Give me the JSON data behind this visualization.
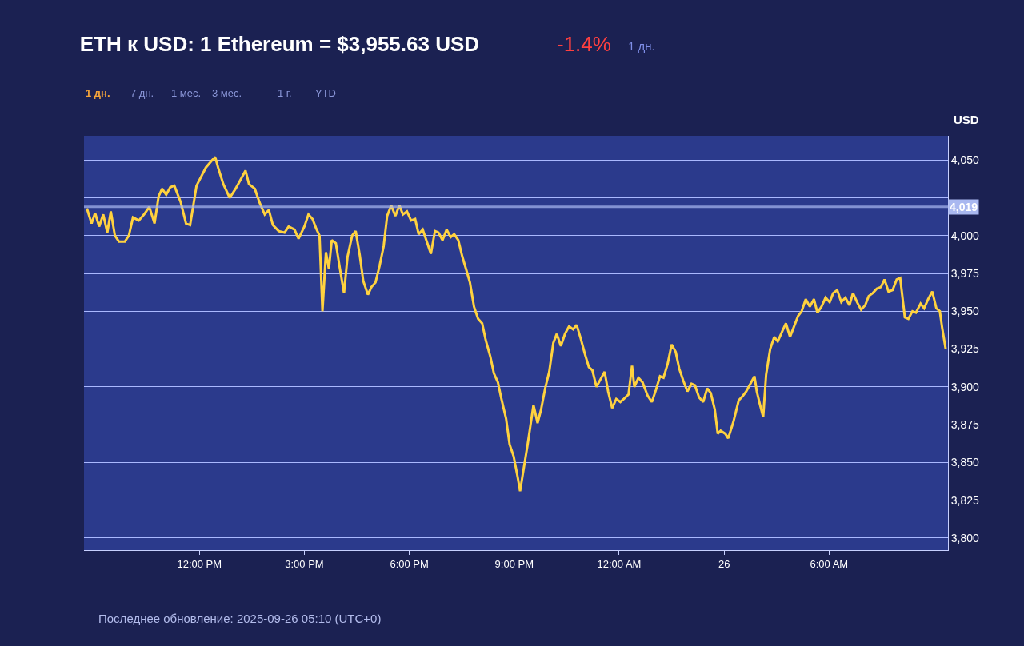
{
  "chart_data": {
    "type": "line",
    "title": "ETH к USD: 1 Ethereum = $3,955.63 USD",
    "ylabel": "USD",
    "annotations": [
      "-1.4%",
      "1 дн.",
      "1 дн.",
      "7 дн.",
      "1 мес.",
      "3 мес.",
      "1 г.",
      "YTD",
      "Последнее обновление: 2025-09-26 05:10 (UTC+0)"
    ],
    "series": [
      {
        "color": "#ffd23f",
        "x": [
          "2025-09-25T08:47",
          "2025-09-25T08:55",
          "2025-09-25T09:01",
          "2025-09-25T09:08",
          "2025-09-25T09:15",
          "2025-09-25T09:22",
          "2025-09-25T09:28",
          "2025-09-25T09:35",
          "2025-09-25T09:42",
          "2025-09-25T09:52",
          "2025-09-25T09:59",
          "2025-09-25T10:06",
          "2025-09-25T10:16",
          "2025-09-25T10:25",
          "2025-09-25T10:34",
          "2025-09-25T10:43",
          "2025-09-25T10:50",
          "2025-09-25T10:56",
          "2025-09-25T11:03",
          "2025-09-25T11:10",
          "2025-09-25T11:17",
          "2025-09-25T11:28",
          "2025-09-25T11:37",
          "2025-09-25T11:44",
          "2025-09-25T11:55",
          "2025-09-25T12:11",
          "2025-09-25T12:22",
          "2025-09-25T12:27",
          "2025-09-25T12:32",
          "2025-09-25T12:41",
          "2025-09-25T12:52",
          "2025-09-25T13:02",
          "2025-09-25T13:12",
          "2025-09-25T13:19",
          "2025-09-25T13:25",
          "2025-09-25T13:35",
          "2025-09-25T13:43",
          "2025-09-25T13:52",
          "2025-09-25T13:59",
          "2025-09-25T14:06",
          "2025-09-25T14:16",
          "2025-09-25T14:26",
          "2025-09-25T14:33",
          "2025-09-25T14:43",
          "2025-09-25T14:50",
          "2025-09-25T15:00",
          "2025-09-25T15:07",
          "2025-09-25T15:14",
          "2025-09-25T15:20",
          "2025-09-25T15:26",
          "2025-09-25T15:31",
          "2025-09-25T15:37",
          "2025-09-25T15:42",
          "2025-09-25T15:47",
          "2025-09-25T15:54",
          "2025-09-25T16:01",
          "2025-09-25T16:08",
          "2025-09-25T16:14",
          "2025-09-25T16:22",
          "2025-09-25T16:28",
          "2025-09-25T16:35",
          "2025-09-25T16:41",
          "2025-09-25T16:49",
          "2025-09-25T16:55",
          "2025-09-25T17:02",
          "2025-09-25T17:09",
          "2025-09-25T17:16",
          "2025-09-25T17:22",
          "2025-09-25T17:29",
          "2025-09-25T17:36",
          "2025-09-25T17:43",
          "2025-09-25T17:49",
          "2025-09-25T17:56",
          "2025-09-25T18:03",
          "2025-09-25T18:10",
          "2025-09-25T18:16",
          "2025-09-25T18:23",
          "2025-09-25T18:30",
          "2025-09-25T18:37",
          "2025-09-25T18:44",
          "2025-09-25T18:50",
          "2025-09-25T18:57",
          "2025-09-25T19:04",
          "2025-09-25T19:11",
          "2025-09-25T19:17",
          "2025-09-25T19:24",
          "2025-09-25T19:31",
          "2025-09-25T19:38",
          "2025-09-25T19:44",
          "2025-09-25T19:51",
          "2025-09-25T19:58",
          "2025-09-25T20:05",
          "2025-09-25T20:11",
          "2025-09-25T20:19",
          "2025-09-25T20:25",
          "2025-09-25T20:32",
          "2025-09-25T20:38",
          "2025-09-25T20:46",
          "2025-09-25T20:52",
          "2025-09-25T20:59",
          "2025-09-25T21:06",
          "2025-09-25T21:10",
          "2025-09-25T21:15",
          "2025-09-25T21:23",
          "2025-09-25T21:33",
          "2025-09-25T21:40",
          "2025-09-25T21:46",
          "2025-09-25T21:53",
          "2025-09-25T22:00",
          "2025-09-25T22:07",
          "2025-09-25T22:13",
          "2025-09-25T22:20",
          "2025-09-25T22:27",
          "2025-09-25T22:34",
          "2025-09-25T22:41",
          "2025-09-25T22:47",
          "2025-09-25T22:54",
          "2025-09-25T23:01",
          "2025-09-25T23:08",
          "2025-09-25T23:14",
          "2025-09-25T23:21",
          "2025-09-25T23:28",
          "2025-09-25T23:35",
          "2025-09-25T23:41",
          "2025-09-25T23:48",
          "2025-09-25T23:55",
          "2025-09-26T00:02",
          "2025-09-26T00:08",
          "2025-09-26T00:16",
          "2025-09-26T00:22",
          "2025-09-26T00:26",
          "2025-09-26T00:33",
          "2025-09-26T00:40",
          "2025-09-26T00:49",
          "2025-09-26T00:56",
          "2025-09-26T01:03",
          "2025-09-26T01:10",
          "2025-09-26T01:16",
          "2025-09-26T01:23",
          "2025-09-26T01:30",
          "2025-09-26T01:37",
          "2025-09-26T01:43",
          "2025-09-26T01:50",
          "2025-09-26T01:57",
          "2025-09-26T02:04",
          "2025-09-26T02:10",
          "2025-09-26T02:17",
          "2025-09-26T02:24",
          "2025-09-26T02:31",
          "2025-09-26T02:37",
          "2025-09-26T02:44",
          "2025-09-26T02:49",
          "2025-09-26T02:54",
          "2025-09-26T03:02",
          "2025-09-26T03:07",
          "2025-09-26T03:16",
          "2025-09-26T03:25",
          "2025-09-26T03:32",
          "2025-09-26T03:38",
          "2025-09-26T03:45",
          "2025-09-26T03:52",
          "2025-09-26T03:56",
          "2025-09-26T04:01",
          "2025-09-26T04:07",
          "2025-09-26T04:12",
          "2025-09-26T04:19",
          "2025-09-26T04:26",
          "2025-09-26T04:32",
          "2025-09-26T04:40",
          "2025-09-26T04:46",
          "2025-09-26T04:53",
          "2025-09-26T04:59",
          "2025-09-26T05:07",
          "2025-09-26T05:13",
          "2025-09-26T05:20",
          "2025-09-26T05:27",
          "2025-09-26T05:34",
          "2025-09-26T05:40",
          "2025-09-26T05:47",
          "2025-09-26T05:54",
          "2025-09-26T06:01",
          "2025-09-26T06:07",
          "2025-09-26T06:14",
          "2025-09-26T06:21",
          "2025-09-26T06:28",
          "2025-09-26T06:35",
          "2025-09-26T06:41",
          "2025-09-26T06:48",
          "2025-09-26T06:55",
          "2025-09-26T07:02",
          "2025-09-26T07:08",
          "2025-09-26T07:15",
          "2025-09-26T07:22",
          "2025-09-26T07:29",
          "2025-09-26T07:35",
          "2025-09-26T07:42",
          "2025-09-26T07:49",
          "2025-09-26T07:56",
          "2025-09-26T08:02",
          "2025-09-26T08:10",
          "2025-09-26T08:16",
          "2025-09-26T08:23",
          "2025-09-26T08:29",
          "2025-09-26T08:37",
          "2025-09-26T08:43",
          "2025-09-26T08:50",
          "2025-09-26T08:57",
          "2025-09-26T09:04",
          "2025-09-26T09:10",
          "2025-09-26T09:14",
          "2025-09-26T09:20"
        ],
        "values": [
          4018,
          4008,
          4015,
          4006,
          4014,
          4002,
          4016,
          4000,
          3996,
          3996,
          4000,
          4012,
          4010,
          4014,
          4019,
          4008,
          4026,
          4031,
          4027,
          4032,
          4033,
          4022,
          4008,
          4007,
          4033,
          4045,
          4050,
          4052,
          4045,
          4034,
          4025,
          4031,
          4038,
          4043,
          4034,
          4031,
          4022,
          4014,
          4017,
          4007,
          4003,
          4002,
          4006,
          4004,
          3998,
          4006,
          4014,
          4011,
          4005,
          4000,
          3950,
          3989,
          3978,
          3997,
          3995,
          3978,
          3962,
          3986,
          4000,
          4003,
          3987,
          3970,
          3961,
          3966,
          3969,
          3980,
          3993,
          4013,
          4020,
          4013,
          4020,
          4014,
          4016,
          4010,
          4011,
          4001,
          4004,
          3996,
          3988,
          4003,
          4002,
          3997,
          4004,
          3999,
          4001,
          3997,
          3986,
          3977,
          3969,
          3953,
          3945,
          3942,
          3931,
          3920,
          3909,
          3903,
          3892,
          3879,
          3862,
          3854,
          3840,
          3831,
          3843,
          3862,
          3888,
          3876,
          3885,
          3899,
          3910,
          3929,
          3935,
          3927,
          3935,
          3940,
          3938,
          3941,
          3932,
          3922,
          3913,
          3911,
          3900,
          3905,
          3910,
          3897,
          3886,
          3892,
          3890,
          3892,
          3895,
          3914,
          3900,
          3906,
          3903,
          3894,
          3890,
          3898,
          3907,
          3906,
          3915,
          3928,
          3923,
          3912,
          3904,
          3897,
          3902,
          3901,
          3893,
          3890,
          3899,
          3896,
          3885,
          3869,
          3871,
          3869,
          3866,
          3877,
          3891,
          3894,
          3897,
          3902,
          3907,
          3897,
          3889,
          3880,
          3908,
          3925,
          3933,
          3930,
          3937,
          3942,
          3933,
          3939,
          3947,
          3950,
          3958,
          3953,
          3958,
          3949,
          3953,
          3959,
          3956,
          3962,
          3964,
          3956,
          3959,
          3954,
          3962,
          3956,
          3951,
          3954,
          3960,
          3962,
          3965,
          3966,
          3971,
          3963,
          3964,
          3971,
          3972,
          3946,
          3945,
          3950,
          3949,
          3955,
          3952,
          3958,
          3963,
          3952,
          3950,
          3939,
          3925
        ]
      }
    ],
    "xlim": [
      "2025-09-25T08:42",
      "2025-09-26T09:24"
    ],
    "xticks": [
      {
        "value": "2025-09-25T12:00",
        "label": "12:00 PM"
      },
      {
        "value": "2025-09-25T15:00",
        "label": "3:00 PM"
      },
      {
        "value": "2025-09-25T18:00",
        "label": "6:00 PM"
      },
      {
        "value": "2025-09-25T21:00",
        "label": "9:00 PM"
      },
      {
        "value": "2025-09-26T00:00",
        "label": "12:00 AM"
      },
      {
        "value": "2025-09-26T03:00",
        "label": "26"
      },
      {
        "value": "2025-09-26T06:00",
        "label": "6:00 AM"
      }
    ],
    "ylim": [
      3792,
      4066
    ],
    "yticks": [
      {
        "value": 3800,
        "label": "3,800"
      },
      {
        "value": 3825,
        "label": "3,825"
      },
      {
        "value": 3850,
        "label": "3,850"
      },
      {
        "value": 3875,
        "label": "3,875"
      },
      {
        "value": 3900,
        "label": "3,900"
      },
      {
        "value": 3925,
        "label": "3,925"
      },
      {
        "value": 3950,
        "label": "3,950"
      },
      {
        "value": 3975,
        "label": "3,975"
      },
      {
        "value": 4000,
        "label": "4,000"
      },
      {
        "value": 4025,
        "label": null
      },
      {
        "value": 4050,
        "label": "4,050"
      }
    ],
    "ref_lines": [
      {
        "axis": "y",
        "value": 4019,
        "label": "4,019",
        "color": "#a9b8f0"
      }
    ],
    "grid": "y"
  }
}
